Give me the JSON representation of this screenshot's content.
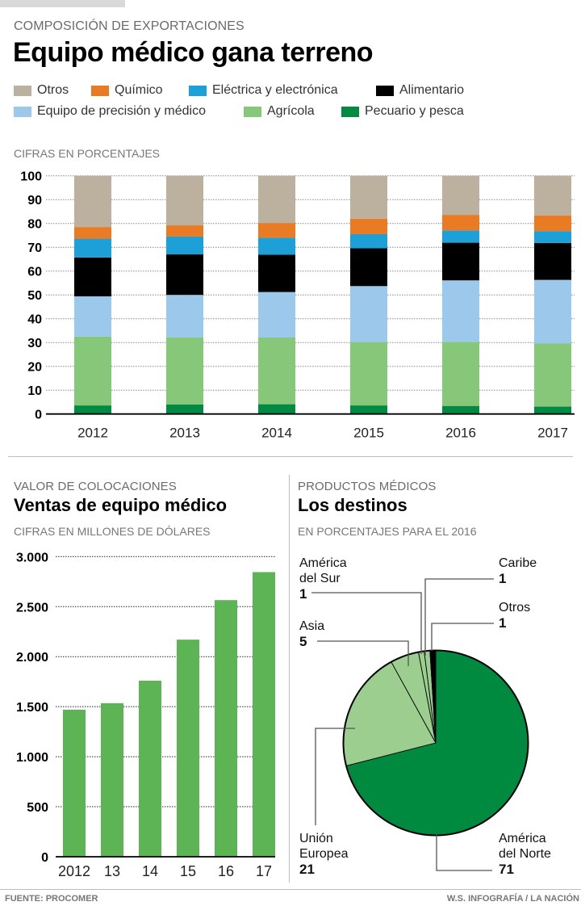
{
  "header": {
    "kicker": "COMPOSICIÓN DE EXPORTACIONES",
    "title": "Equipo médico gana terreno"
  },
  "legend": [
    {
      "label": "Otros",
      "color": "#bcb09e"
    },
    {
      "label": "Químico",
      "color": "#e87b23"
    },
    {
      "label": "Eléctrica y electrónica",
      "color": "#1d9fd8"
    },
    {
      "label": "Alimentario",
      "color": "#000000"
    },
    {
      "label": "Equipo de precisión y médico",
      "color": "#9bc8eb"
    },
    {
      "label": "Agrícola",
      "color": "#86c77a"
    },
    {
      "label": "Pecuario y pesca",
      "color": "#008a43"
    }
  ],
  "composition": {
    "subtitle": "CIFRAS EN PORCENTAJES"
  },
  "sales": {
    "kicker": "VALOR DE COLOCACIONES",
    "title": "Ventas de equipo médico",
    "subtitle": "CIFRAS EN MILLONES DE DÓLARES"
  },
  "destinations": {
    "kicker": "PRODUCTOS MÉDICOS",
    "title": "Los destinos",
    "subtitle": "EN PORCENTAJES PARA EL 2016"
  },
  "footer": {
    "source": "FUENTE: PROCOMER",
    "credit": "W.S. INFOGRAFÍA / LA NACIÓN"
  },
  "chart_data": [
    {
      "type": "bar",
      "stacked": true,
      "title": "Equipo médico gana terreno",
      "subtitle": "CIFRAS EN PORCENTAJES",
      "xlabel": "",
      "ylabel": "",
      "ylim": [
        0,
        100
      ],
      "yticks": [
        "0",
        "10",
        "20",
        "30",
        "40",
        "50",
        "60",
        "70",
        "80",
        "90",
        "100"
      ],
      "grid": true,
      "legend_position": "top",
      "categories": [
        "2012",
        "2013",
        "2014",
        "2015",
        "2016",
        "2017"
      ],
      "series": [
        {
          "name": "Pecuario y pesca",
          "color": "#008a43",
          "values": [
            3.6,
            4.0,
            4.1,
            3.6,
            3.4,
            3.1
          ]
        },
        {
          "name": "Agrícola",
          "color": "#86c77a",
          "values": [
            28.9,
            28.2,
            28.0,
            26.6,
            26.9,
            26.6
          ]
        },
        {
          "name": "Equipo de precisión y médico",
          "color": "#9bc8eb",
          "values": [
            16.9,
            17.8,
            19.1,
            23.5,
            25.8,
            26.6
          ]
        },
        {
          "name": "Alimentario",
          "color": "#000000",
          "values": [
            16.3,
            17.0,
            15.7,
            15.9,
            15.8,
            15.5
          ]
        },
        {
          "name": "Eléctrica y electrónica",
          "color": "#1d9fd8",
          "values": [
            7.9,
            7.5,
            7.1,
            5.9,
            5.2,
            5.0
          ]
        },
        {
          "name": "Químico",
          "color": "#e87b23",
          "values": [
            4.9,
            4.7,
            6.2,
            6.5,
            6.5,
            6.6
          ]
        },
        {
          "name": "Otros",
          "color": "#bcb09e",
          "values": [
            21.5,
            20.8,
            19.8,
            18.0,
            16.4,
            16.6
          ]
        }
      ]
    },
    {
      "type": "bar",
      "title": "Ventas de equipo médico",
      "subtitle": "CIFRAS EN MILLONES DE DÓLARES",
      "xlabel": "",
      "ylabel": "",
      "ylim": [
        0,
        3000
      ],
      "yticks": [
        "0",
        "500",
        "1.000",
        "1.500",
        "2.000",
        "2.500",
        "3.000"
      ],
      "grid": true,
      "color": "#5cb454",
      "categories": [
        "2012",
        "13",
        "14",
        "15",
        "16",
        "17"
      ],
      "values": [
        1470,
        1535,
        1760,
        2170,
        2565,
        2845
      ]
    },
    {
      "type": "pie",
      "title": "Los destinos",
      "subtitle": "EN PORCENTAJES PARA EL 2016",
      "slices": [
        {
          "name": "América del Norte",
          "label_lines": [
            "América",
            "del Norte"
          ],
          "value": 71,
          "color": "#008a40"
        },
        {
          "name": "Unión Europea",
          "label_lines": [
            "Unión",
            "Europea"
          ],
          "value": 21,
          "color": "#9ccf8f"
        },
        {
          "name": "Asia",
          "label_lines": [
            "Asia"
          ],
          "value": 5,
          "color": "#9ccf8f"
        },
        {
          "name": "América del Sur",
          "label_lines": [
            "América",
            "del Sur"
          ],
          "value": 1,
          "color": "#9ccf8f"
        },
        {
          "name": "Caribe",
          "label_lines": [
            "Caribe"
          ],
          "value": 1,
          "color": "#9ccf8f"
        },
        {
          "name": "Otros",
          "label_lines": [
            "Otros"
          ],
          "value": 1,
          "color": "#000000"
        }
      ]
    }
  ]
}
